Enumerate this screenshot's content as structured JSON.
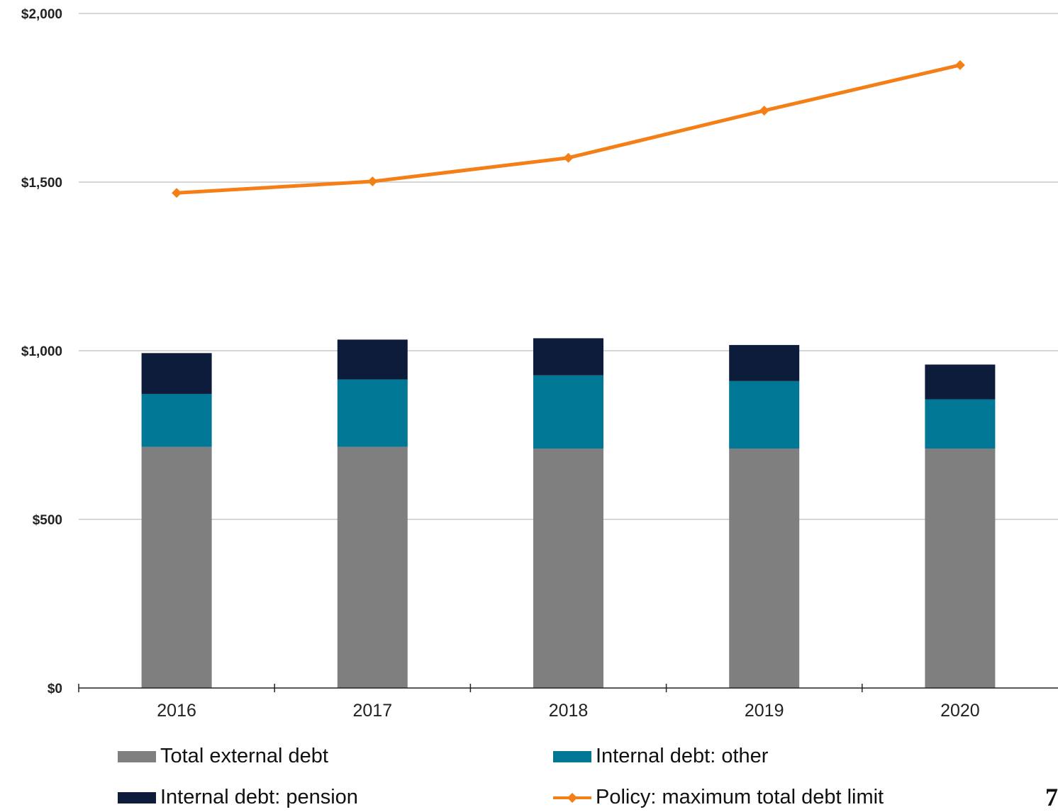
{
  "chart_data": {
    "type": "bar",
    "stacked": true,
    "categories": [
      "2016",
      "2017",
      "2018",
      "2019",
      "2020"
    ],
    "series": [
      {
        "name": "Total external debt",
        "kind": "bar",
        "color": "#7f7f7f",
        "values": [
          715,
          715,
          710,
          710,
          710
        ]
      },
      {
        "name": "Internal debt: other",
        "kind": "bar",
        "color": "#007794",
        "values": [
          157,
          200,
          217,
          200,
          146
        ]
      },
      {
        "name": "Internal debt: pension",
        "kind": "bar",
        "color": "#0c1c3a",
        "values": [
          121,
          118,
          110,
          107,
          103
        ]
      },
      {
        "name": "Policy: maximum total debt limit",
        "kind": "line",
        "color": "#f57f17",
        "values": [
          1468,
          1502,
          1572,
          1712,
          1847
        ]
      }
    ],
    "yticks": [
      "$0",
      "$500",
      "$1,000",
      "$1,500",
      "$2,000"
    ],
    "ytick_values": [
      0,
      500,
      1000,
      1500,
      2000
    ],
    "ylim": [
      0,
      2000
    ],
    "grid": true,
    "legend_position": "bottom"
  },
  "page_number": "7"
}
